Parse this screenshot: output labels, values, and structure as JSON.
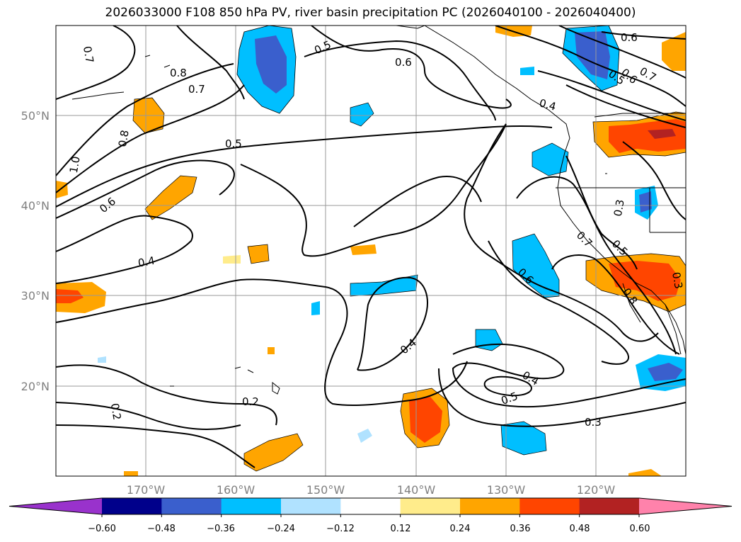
{
  "title": "2026033000 F108 850 hPa PV, river basin precipitation PC (2026040100 - 2026040400)",
  "map": {
    "lat_labels": [
      "50°N",
      "40°N",
      "30°N",
      "20°N"
    ],
    "lon_labels": [
      "170°W",
      "160°W",
      "150°W",
      "140°W",
      "130°W",
      "120°W"
    ],
    "contour_labels": [
      "0.7",
      "0.8",
      "0.7",
      "0.5",
      "0.6",
      "0.6",
      "0.7",
      "0.5",
      "0.6",
      "0.4",
      "0.8",
      "1.0",
      "0.5",
      "0.6",
      "0.4",
      "0.3",
      "0.7",
      "0.5",
      "0.6",
      "0.8",
      "0.3",
      "0.4",
      "0.4",
      "0.5",
      "0.2",
      "0.2",
      "0.3"
    ]
  },
  "colorbar": {
    "colors": [
      "#9932cc",
      "#00008b",
      "#3a5fcd",
      "#00bfff",
      "#b0e2ff",
      "#ffffff",
      "#ffec8b",
      "#ffa500",
      "#ff4500",
      "#b22222",
      "#ff82ab"
    ],
    "tick_labels": [
      "−0.60",
      "−0.48",
      "−0.36",
      "−0.24",
      "−0.12",
      "0.12",
      "0.24",
      "0.36",
      "0.48",
      "0.60"
    ]
  }
}
